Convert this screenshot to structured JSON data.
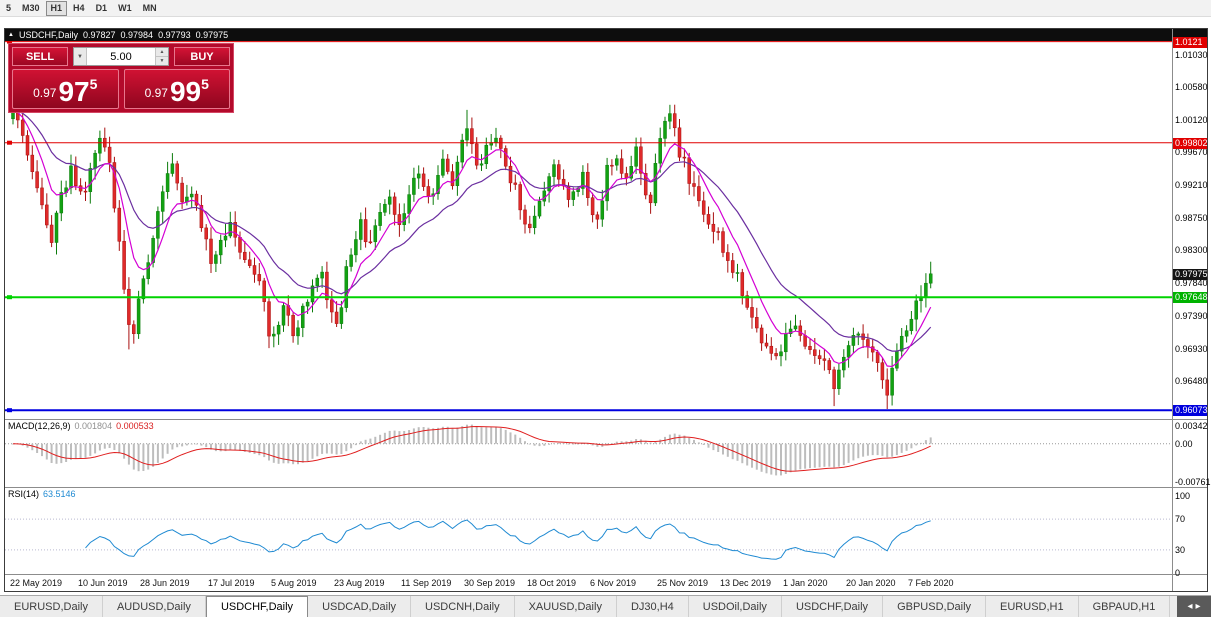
{
  "toolbar": {
    "timeframes": [
      "5",
      "M30",
      "H1",
      "H4",
      "D1",
      "W1",
      "MN"
    ],
    "active": "H1"
  },
  "chart": {
    "title": "USDCHF,Daily",
    "ohlc": {
      "open": "0.97827",
      "high": "0.97984",
      "low": "0.97793",
      "close": "0.97975"
    },
    "hlines": [
      {
        "price": 1.01211,
        "color": "#e00000",
        "width": 1
      },
      {
        "price": 0.99802,
        "color": "#e00000",
        "width": 1
      },
      {
        "price": 0.97648,
        "color": "#00d300",
        "width": 2
      },
      {
        "price": 0.96073,
        "color": "#0000e0",
        "width": 2
      }
    ]
  },
  "trade_panel": {
    "sell_label": "SELL",
    "buy_label": "BUY",
    "volume": "5.00",
    "bid": {
      "prefix": "0.97",
      "big": "97",
      "sup": "5"
    },
    "ask": {
      "prefix": "0.97",
      "big": "99",
      "sup": "5"
    }
  },
  "price_axis": {
    "regular": [
      {
        "t": "1.01030",
        "p": 1.0103
      },
      {
        "t": "1.00580",
        "p": 1.0058
      },
      {
        "t": "1.00120",
        "p": 1.0012
      },
      {
        "t": "0.99670",
        "p": 0.9967
      },
      {
        "t": "0.99210",
        "p": 0.9921
      },
      {
        "t": "0.98750",
        "p": 0.9875
      },
      {
        "t": "0.98300",
        "p": 0.983
      },
      {
        "t": "0.97840",
        "p": 0.9784
      },
      {
        "t": "0.97390",
        "p": 0.9739
      },
      {
        "t": "0.96930",
        "p": 0.9693
      },
      {
        "t": "0.96480",
        "p": 0.9648
      }
    ],
    "special": [
      {
        "t": "1.0121",
        "p": 1.01211,
        "bg": "#e00000"
      },
      {
        "t": "0.99802",
        "p": 0.99802,
        "bg": "#e00000"
      },
      {
        "t": "0.97975",
        "p": 0.97975,
        "bg": "#141414"
      },
      {
        "t": "0.97648",
        "p": 0.97648,
        "bg": "#00b300"
      },
      {
        "t": "0.96073",
        "p": 0.96073,
        "bg": "#0000dd"
      }
    ]
  },
  "panes": {
    "macd": {
      "label": "MACD(12,26,9)",
      "value1": "0.001804",
      "value2": "0.000533",
      "axis": [
        {
          "t": "0.00342",
          "v": 0.00342
        },
        {
          "t": "0.00",
          "v": 0
        },
        {
          "t": "-0.00761",
          "v": -0.00761
        }
      ]
    },
    "rsi": {
      "label": "RSI(14)",
      "value": "63.5146",
      "levels": [
        70,
        30
      ],
      "axis": [
        {
          "t": "100",
          "v": 100
        },
        {
          "t": "70",
          "v": 70
        },
        {
          "t": "30",
          "v": 30
        },
        {
          "t": "0",
          "v": 0
        }
      ]
    }
  },
  "tabs": {
    "items": [
      "EURUSD,Daily",
      "AUDUSD,Daily",
      "USDCHF,Daily",
      "USDCAD,Daily",
      "USDCNH,Daily",
      "XAUUSD,Daily",
      "DJ30,H4",
      "USDOil,Daily",
      "USDCHF,Daily",
      "GBPUSD,Daily",
      "EURUSD,H1",
      "GBPAUD,H1"
    ],
    "active_index": 2,
    "scroll_left": "◂",
    "scroll_right": "▸"
  },
  "colors": {
    "up": "#12a212",
    "up_stroke": "#0b7b0b",
    "down": "#df2a2a",
    "down_stroke": "#a80f0f",
    "ma_fast": "#d400d4",
    "ma_slow": "#6b2fa0",
    "macd_hist": "#bdbdbd",
    "macd_signal": "#e01f1f",
    "rsi": "#1f8ad2",
    "panel_red": "#b30a2b"
  },
  "chart_data": {
    "type": "candlestick",
    "symbol": "USDCHF",
    "timeframe": "Daily",
    "count": 191,
    "x0": 8,
    "dx": 4.83,
    "y_range": [
      0.9595,
      1.0122
    ],
    "ma_periods": [
      8,
      21
    ],
    "anchors": [
      [
        0,
        1.002
      ],
      [
        1,
        1.0005
      ],
      [
        3,
        0.996
      ],
      [
        5,
        0.9915
      ],
      [
        7,
        0.9865
      ],
      [
        8,
        0.984
      ],
      [
        10,
        0.9905
      ],
      [
        12,
        0.9945
      ],
      [
        14,
        0.9905
      ],
      [
        16,
        0.9935
      ],
      [
        18,
        0.9985
      ],
      [
        20,
        0.9955
      ],
      [
        22,
        0.984
      ],
      [
        24,
        0.9725
      ],
      [
        25,
        0.9715
      ],
      [
        27,
        0.979
      ],
      [
        29,
        0.985
      ],
      [
        31,
        0.992
      ],
      [
        33,
        0.9945
      ],
      [
        35,
        0.989
      ],
      [
        37,
        0.9905
      ],
      [
        39,
        0.9865
      ],
      [
        41,
        0.9815
      ],
      [
        43,
        0.9845
      ],
      [
        45,
        0.987
      ],
      [
        47,
        0.9835
      ],
      [
        49,
        0.9805
      ],
      [
        51,
        0.978
      ],
      [
        53,
        0.972
      ],
      [
        54,
        0.9705
      ],
      [
        56,
        0.9745
      ],
      [
        58,
        0.9715
      ],
      [
        60,
        0.9745
      ],
      [
        62,
        0.9775
      ],
      [
        64,
        0.979
      ],
      [
        66,
        0.9735
      ],
      [
        67,
        0.972
      ],
      [
        69,
        0.98
      ],
      [
        71,
        0.9855
      ],
      [
        72,
        0.9865
      ],
      [
        74,
        0.9835
      ],
      [
        76,
        0.9875
      ],
      [
        78,
        0.99
      ],
      [
        80,
        0.9865
      ],
      [
        82,
        0.991
      ],
      [
        84,
        0.9935
      ],
      [
        86,
        0.99
      ],
      [
        88,
        0.9935
      ],
      [
        89,
        0.995
      ],
      [
        91,
        0.9925
      ],
      [
        93,
        0.998
      ],
      [
        94,
        1.0005
      ],
      [
        95,
        0.9985
      ],
      [
        96,
        0.995
      ],
      [
        98,
        0.997
      ],
      [
        100,
        0.9985
      ],
      [
        102,
        0.9945
      ],
      [
        104,
        0.992
      ],
      [
        106,
        0.987
      ],
      [
        107,
        0.986
      ],
      [
        109,
        0.9905
      ],
      [
        111,
        0.9935
      ],
      [
        112,
        0.995
      ],
      [
        114,
        0.9915
      ],
      [
        116,
        0.9905
      ],
      [
        118,
        0.993
      ],
      [
        120,
        0.9875
      ],
      [
        121,
        0.987
      ],
      [
        123,
        0.994
      ],
      [
        125,
        0.9955
      ],
      [
        127,
        0.9935
      ],
      [
        129,
        0.9965
      ],
      [
        131,
        0.9915
      ],
      [
        132,
        0.99
      ],
      [
        134,
        0.999
      ],
      [
        136,
        1.0015
      ],
      [
        138,
        0.997
      ],
      [
        140,
        0.993
      ],
      [
        142,
        0.9895
      ],
      [
        144,
        0.987
      ],
      [
        146,
        0.985
      ],
      [
        148,
        0.982
      ],
      [
        150,
        0.979
      ],
      [
        152,
        0.9755
      ],
      [
        154,
        0.972
      ],
      [
        156,
        0.9695
      ],
      [
        158,
        0.9685
      ],
      [
        160,
        0.9712
      ],
      [
        162,
        0.973
      ],
      [
        164,
        0.97
      ],
      [
        166,
        0.9685
      ],
      [
        168,
        0.9668
      ],
      [
        170,
        0.964
      ],
      [
        171,
        0.9658
      ],
      [
        173,
        0.9692
      ],
      [
        175,
        0.9712
      ],
      [
        177,
        0.97
      ],
      [
        179,
        0.9678
      ],
      [
        180,
        0.965
      ],
      [
        181,
        0.9635
      ],
      [
        183,
        0.9688
      ],
      [
        185,
        0.9722
      ],
      [
        187,
        0.9752
      ],
      [
        189,
        0.978
      ],
      [
        190,
        0.97975
      ]
    ],
    "wicks": [
      [
        1,
        "h",
        1.0033
      ],
      [
        24,
        "l",
        0.9692
      ],
      [
        54,
        "l",
        0.9695
      ],
      [
        94,
        "h",
        1.0026
      ],
      [
        136,
        "h",
        1.0019
      ],
      [
        170,
        "l",
        0.9613
      ],
      [
        181,
        "l",
        0.9609
      ]
    ],
    "x_labels": [
      {
        "idx": 0,
        "label": "22 May 2019"
      },
      {
        "idx": 14,
        "label": "10 Jun 2019"
      },
      {
        "idx": 27,
        "label": "28 Jun 2019"
      },
      {
        "idx": 41,
        "label": "17 Jul 2019"
      },
      {
        "idx": 54,
        "label": "5 Aug 2019"
      },
      {
        "idx": 67,
        "label": "23 Aug 2019"
      },
      {
        "idx": 81,
        "label": "11 Sep 2019"
      },
      {
        "idx": 94,
        "label": "30 Sep 2019"
      },
      {
        "idx": 107,
        "label": "18 Oct 2019"
      },
      {
        "idx": 120,
        "label": "6 Nov 2019"
      },
      {
        "idx": 134,
        "label": "25 Nov 2019"
      },
      {
        "idx": 147,
        "label": "13 Dec 2019"
      },
      {
        "idx": 160,
        "label": "1 Jan 2020"
      },
      {
        "idx": 173,
        "label": "20 Jan 2020"
      },
      {
        "idx": 186,
        "label": "7 Feb 2020"
      }
    ]
  }
}
